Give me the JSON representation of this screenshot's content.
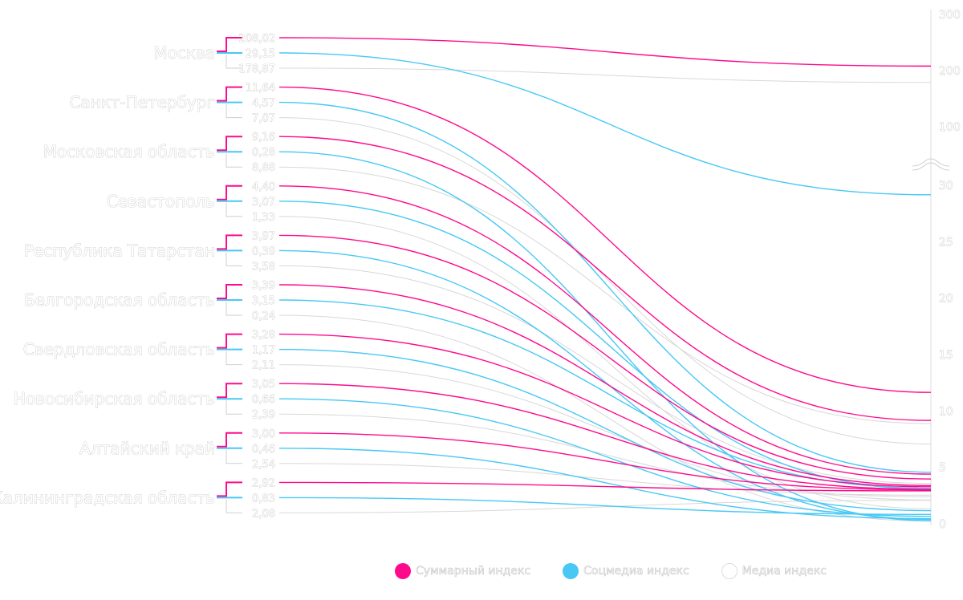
{
  "chart_data": {
    "type": "slope",
    "series": [
      {
        "name": "Суммарный индекс",
        "color": "#ff0a8c"
      },
      {
        "name": "Соцмедиа индекс",
        "color": "#47c8f5"
      },
      {
        "name": "Медиа индекс",
        "color": "#ffffff"
      }
    ],
    "regions": [
      {
        "name": "Москва",
        "labels": [
          "208,02",
          "29,15",
          "178,87"
        ],
        "values": [
          208.02,
          29.15,
          178.87
        ]
      },
      {
        "name": "Санкт-Петербург",
        "labels": [
          "11,64",
          "4,57",
          "7,07"
        ],
        "values": [
          11.64,
          4.57,
          7.07
        ]
      },
      {
        "name": "Московская область",
        "labels": [
          "9,16",
          "0,28",
          "8,88"
        ],
        "values": [
          9.16,
          0.28,
          8.88
        ]
      },
      {
        "name": "Севастополь",
        "labels": [
          "4,40",
          "3,07",
          "1,33"
        ],
        "values": [
          4.4,
          3.07,
          1.33
        ]
      },
      {
        "name": "Республика Татарстан",
        "labels": [
          "3,97",
          "0,39",
          "3,58"
        ],
        "values": [
          3.97,
          0.39,
          3.58
        ]
      },
      {
        "name": "Белгородская область",
        "labels": [
          "3,39",
          "3,15",
          "0,24"
        ],
        "values": [
          3.39,
          3.15,
          0.24
        ]
      },
      {
        "name": "Свердловская область",
        "labels": [
          "3,28",
          "1,17",
          "2,11"
        ],
        "values": [
          3.28,
          1.17,
          2.11
        ]
      },
      {
        "name": "Новосибирская область",
        "labels": [
          "3,05",
          "0,66",
          "2,39"
        ],
        "values": [
          3.05,
          0.66,
          2.39
        ]
      },
      {
        "name": "Алтайский край",
        "labels": [
          "3,00",
          "0,46",
          "2,54"
        ],
        "values": [
          3.0,
          0.46,
          2.54
        ]
      },
      {
        "name": "Калининградская область",
        "labels": [
          "2,92",
          "0,83",
          "2,08"
        ],
        "values": [
          2.92,
          0.83,
          2.08
        ]
      }
    ],
    "y_axis": {
      "ticks": [
        "0",
        "5",
        "10",
        "15",
        "20",
        "25",
        "30",
        "100",
        "200",
        "300"
      ],
      "tick_values": [
        0,
        5,
        10,
        15,
        20,
        25,
        30,
        100,
        200,
        300
      ],
      "scale_break": [
        30,
        100
      ],
      "position": "right"
    },
    "legend_placement": "bottom"
  }
}
